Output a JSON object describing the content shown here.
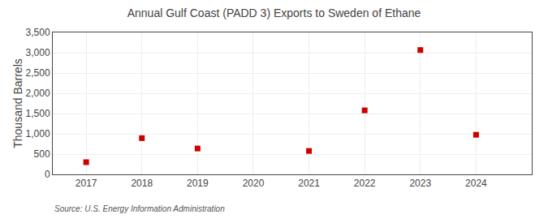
{
  "chart_data": {
    "type": "scatter",
    "title": "Annual Gulf Coast (PADD 3) Exports to Sweden of Ethane",
    "y_label": "Thousand Barrels",
    "annotations": [
      "Source: U.S. Energy Information Administration"
    ],
    "x": [
      2017,
      2018,
      2019,
      2021,
      2022,
      2023,
      2024
    ],
    "values": [
      300,
      893,
      637,
      577,
      1578,
      3066,
      976
    ],
    "color": "#cc0000",
    "marker": "square",
    "xlim": [
      2016.4,
      2025.0
    ],
    "ylim": [
      0,
      3500
    ],
    "xticks": [
      2017,
      2018,
      2019,
      2020,
      2021,
      2022,
      2023,
      2024
    ],
    "yticks": [
      0,
      500,
      {
        "value": 1000,
        "label": "1,000"
      },
      {
        "value": 1500,
        "label": "1,500"
      },
      {
        "value": 2000,
        "label": "2,000"
      },
      {
        "value": 2500,
        "label": "2,500"
      },
      {
        "value": 3000,
        "label": "3,000"
      },
      {
        "value": 3500,
        "label": "3,500"
      }
    ],
    "grid": true
  }
}
